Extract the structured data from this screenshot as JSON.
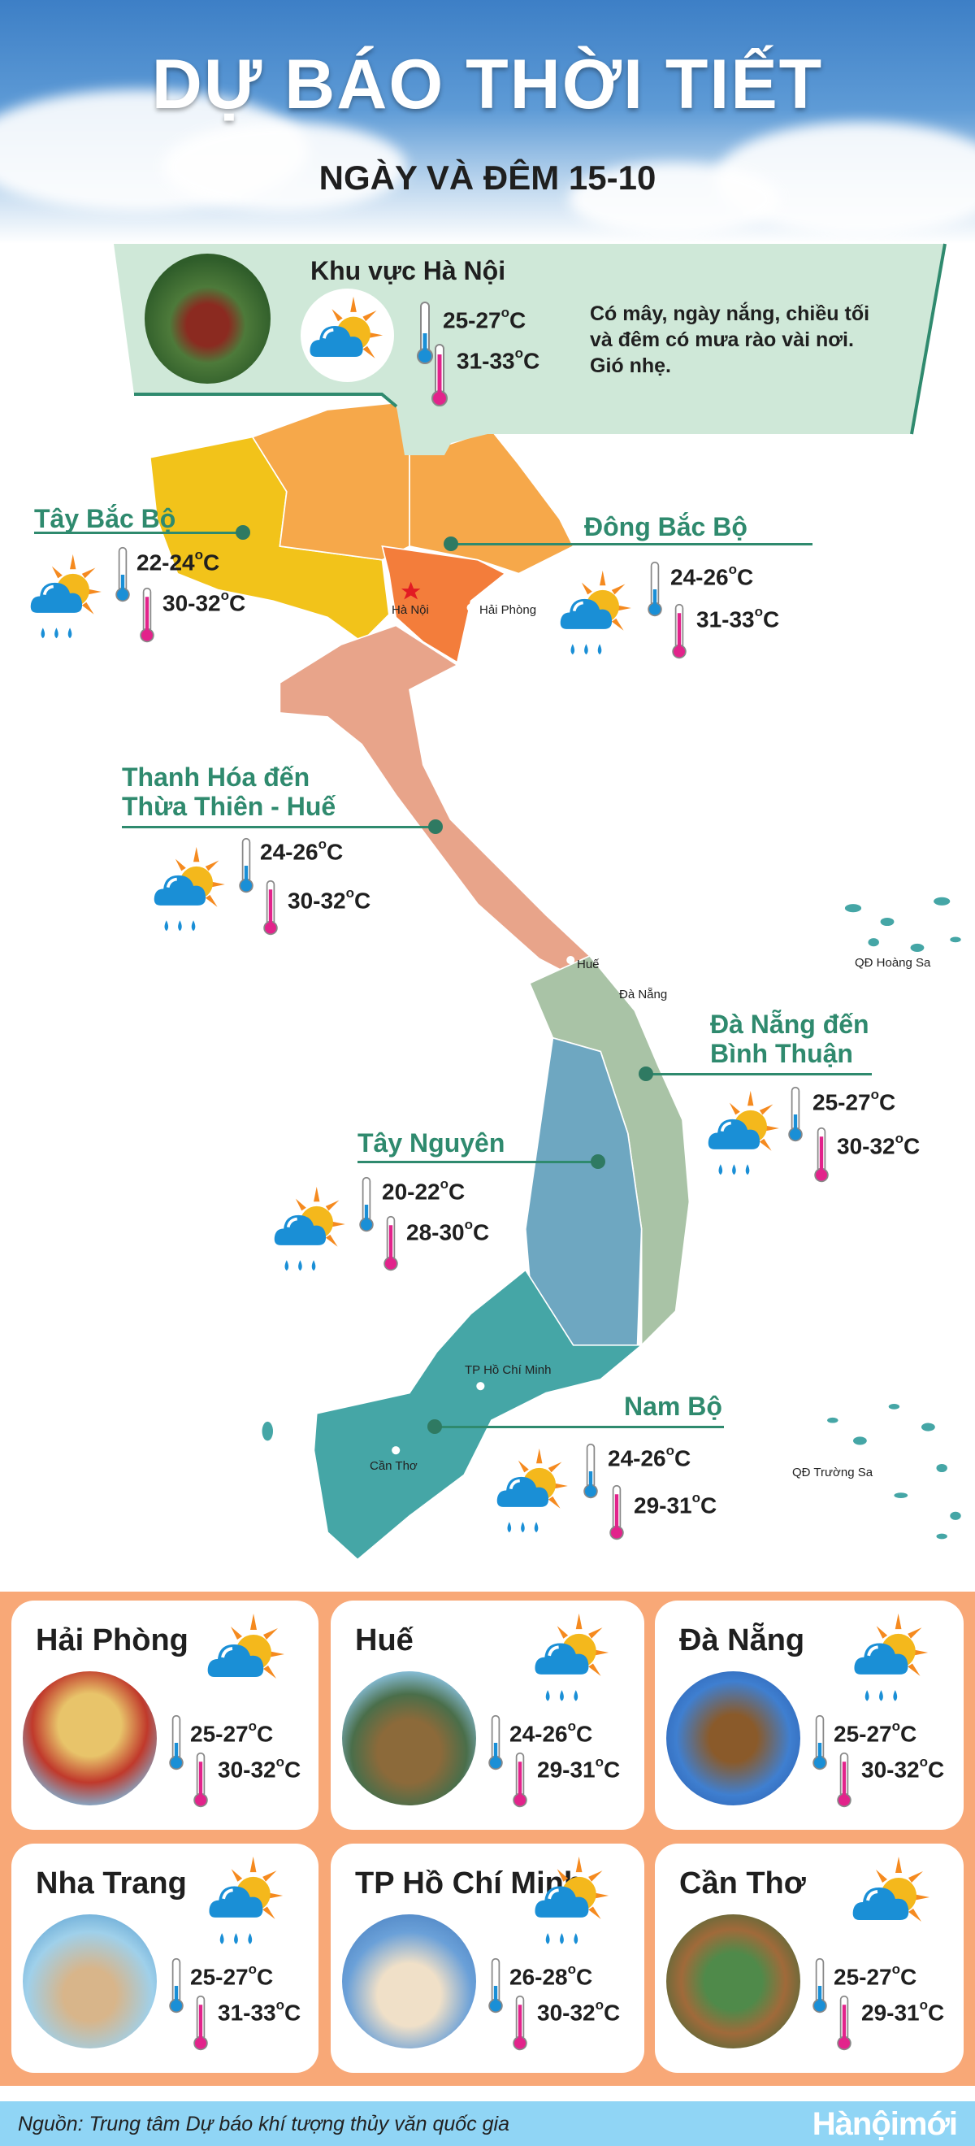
{
  "header": {
    "title": "DỰ BÁO THỜI TIẾT",
    "subtitle": "NGÀY VÀ ĐÊM 15-10"
  },
  "hanoi": {
    "name": "Khu vực Hà Nội",
    "icon": "cloud-sun-icon",
    "low": "25-27",
    "high": "31-33",
    "unit": "C",
    "description": "Có mây, ngày nắng, chiều tối và đêm có mưa rào vài nơi. Gió nhẹ."
  },
  "regions": [
    {
      "name": "Tây Bắc Bộ",
      "icon": "cloud-sun-rain-icon",
      "low": "22-24",
      "high": "30-32"
    },
    {
      "name": "Đông Bắc Bộ",
      "icon": "cloud-sun-rain-icon",
      "low": "24-26",
      "high": "31-33"
    },
    {
      "name": "Thanh Hóa đến Thừa Thiên - Huế",
      "line1": "Thanh Hóa đến",
      "line2": "Thừa Thiên - Huế",
      "icon": "cloud-sun-rain-icon",
      "low": "24-26",
      "high": "30-32"
    },
    {
      "name": "Đà Nẵng đến Bình Thuận",
      "line1": "Đà Nẵng đến",
      "line2": "Bình Thuận",
      "icon": "cloud-rain-icon",
      "low": "25-27",
      "high": "30-32"
    },
    {
      "name": "Tây Nguyên",
      "icon": "cloud-sun-rain-icon",
      "low": "20-22",
      "high": "28-30"
    },
    {
      "name": "Nam Bộ",
      "icon": "cloud-sun-rain-icon",
      "low": "24-26",
      "high": "29-31"
    }
  ],
  "map_places": {
    "ha_noi": "Hà Nội",
    "hai_phong": "Hải Phòng",
    "hue": "Huế",
    "da_nang": "Đà Nẵng",
    "hcm": "TP Hồ Chí Minh",
    "can_tho": "Cần Thơ",
    "hoang_sa": "QĐ Hoàng Sa",
    "truong_sa": "QĐ Trường Sa"
  },
  "map_colors": {
    "tay_bac": "#f2c31a",
    "dong_bac": "#f6a84a",
    "dong_bang": "#f37d3b",
    "bac_trung_bo": "#e8a48a",
    "nam_trung_bo": "#a9c3a6",
    "tay_nguyen": "#6ea7c1",
    "nam_bo": "#45a6a6"
  },
  "cities": [
    {
      "name": "Hải Phòng",
      "icon": "cloud-sun-icon",
      "low": "25-27",
      "high": "30-32"
    },
    {
      "name": "Huế",
      "icon": "cloud-sun-rain-icon",
      "low": "24-26",
      "high": "29-31"
    },
    {
      "name": "Đà Nẵng",
      "icon": "cloud-sun-rain-icon",
      "low": "25-27",
      "high": "30-32"
    },
    {
      "name": "Nha Trang",
      "icon": "cloud-rain-icon",
      "low": "25-27",
      "high": "31-33"
    },
    {
      "name": "TP Hồ Chí Minh",
      "icon": "cloud-sun-rain-icon",
      "low": "26-28",
      "high": "30-32"
    },
    {
      "name": "Cần Thơ",
      "icon": "cloud-sun-icon",
      "low": "25-27",
      "high": "29-31"
    }
  ],
  "footer": {
    "source": "Nguồn: Trung tâm Dự báo khí tượng thủy văn quốc gia",
    "logo": "Hànộimới"
  },
  "colors": {
    "accent_green": "#2f8a6e",
    "panel_orange": "#f8a877",
    "footer_blue": "#90d5f5",
    "cloud_blue": "#1a8fd6",
    "sun_orange": "#f58a1f"
  }
}
